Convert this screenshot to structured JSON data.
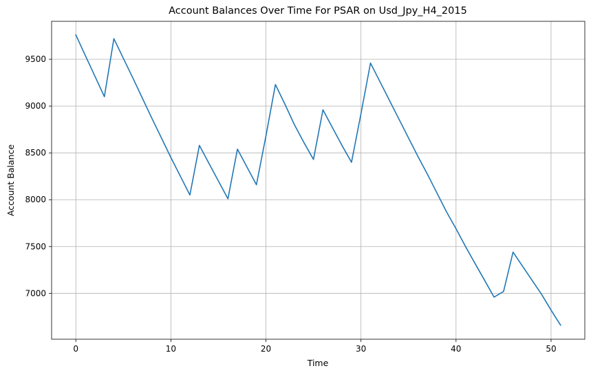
{
  "chart_data": {
    "type": "line",
    "title": "Account Balances Over Time For PSAR on Usd_Jpy_H4_2015",
    "xlabel": "Time",
    "ylabel": "Account Balance",
    "xlim": [
      -2.55,
      53.55
    ],
    "ylim": [
      6510,
      9905
    ],
    "xticks": [
      0,
      10,
      20,
      30,
      40,
      50
    ],
    "yticks": [
      7000,
      7500,
      8000,
      8500,
      9000,
      9500
    ],
    "grid": true,
    "colors": {
      "series": "#1f77b4"
    },
    "series": [
      {
        "x": [
          0,
          1,
          2,
          3,
          4,
          5,
          6,
          7,
          8,
          9,
          10,
          11,
          12,
          13,
          14,
          15,
          16,
          17,
          18,
          19,
          20,
          21,
          22,
          23,
          24,
          25,
          26,
          27,
          28,
          29,
          30,
          31,
          32,
          33,
          34,
          35,
          36,
          37,
          38,
          39,
          40,
          41,
          42,
          43,
          44,
          45,
          46,
          47,
          48,
          49,
          50,
          51
        ],
        "values": [
          9760,
          9540,
          9320,
          9100,
          9720,
          9510,
          9300,
          9085,
          8870,
          8660,
          8450,
          8250,
          8050,
          8580,
          8390,
          8200,
          8010,
          8540,
          8350,
          8160,
          8680,
          9230,
          9020,
          8800,
          8610,
          8430,
          8960,
          8770,
          8580,
          8400,
          8920,
          9460,
          9260,
          9060,
          8860,
          8660,
          8460,
          8270,
          8070,
          7870,
          7690,
          7500,
          7320,
          7140,
          6960,
          7020,
          7440,
          7290,
          7140,
          6990,
          6820,
          6660
        ]
      }
    ]
  }
}
